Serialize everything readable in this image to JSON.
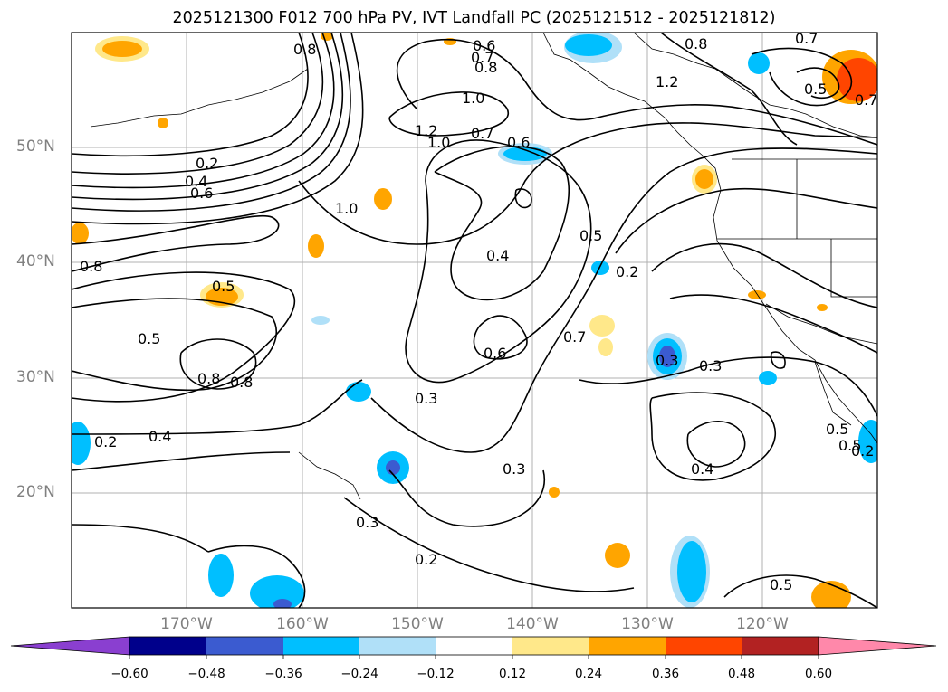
{
  "title": "2025121300 F012 700 hPa PV, IVT Landfall PC (2025121512 - 2025121812)",
  "axes": {
    "lat_labels": [
      "50°N",
      "40°N",
      "30°N",
      "20°N"
    ],
    "lon_labels": [
      "170°W",
      "160°W",
      "150°W",
      "140°W",
      "130°W",
      "120°W"
    ]
  },
  "contour_labels": [
    "0.2",
    "0.4",
    "0.6",
    "0.8",
    "1.0",
    "1.2",
    "1.0",
    "0.7",
    "0.6",
    "0.8",
    "0.7",
    "0.6",
    "1.2",
    "0.8",
    "0.7",
    "0.5",
    "0.7",
    "1.0",
    "0.4",
    "0.5",
    "0.2",
    "0.6",
    "0.8",
    "0.5",
    "0.5",
    "0.8",
    "0.7",
    "0.4",
    "0.2",
    "0.3",
    "0.3",
    "0.3",
    "0.3",
    "0.3",
    "0.2",
    "0.4",
    "0.5",
    "0.5",
    "0.5",
    "0.2",
    "0.8"
  ],
  "colorbar": {
    "colors": [
      "#8a3fd0",
      "#00008b",
      "#3b5bd0",
      "#00bfff",
      "#b0e0f8",
      "#ffffff",
      "#ffe88a",
      "#ffa500",
      "#ff4500",
      "#b22222",
      "#ff88aa"
    ],
    "ticks": [
      "−0.60",
      "−0.48",
      "−0.36",
      "−0.24",
      "−0.12",
      "0.12",
      "0.24",
      "0.36",
      "0.48",
      "0.60"
    ]
  }
}
